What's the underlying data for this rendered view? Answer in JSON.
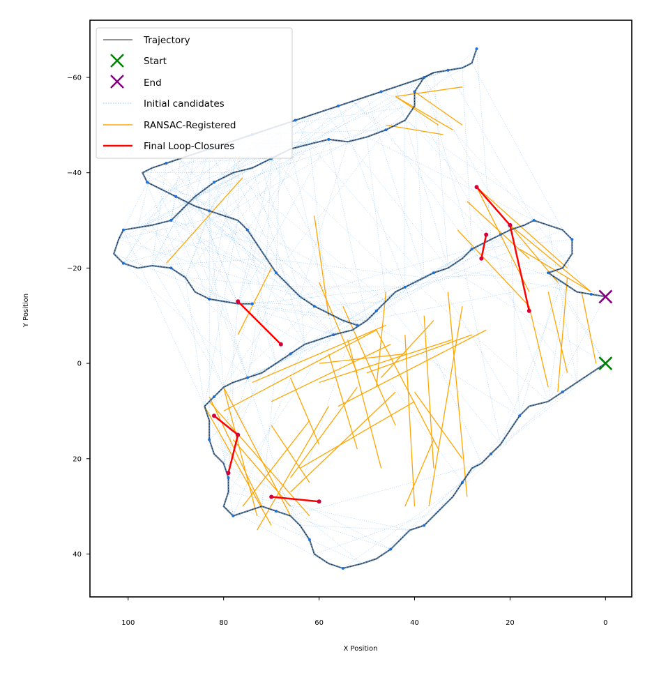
{
  "chart_data": {
    "type": "line",
    "title": "",
    "xlabel": "X Position",
    "ylabel": "Y Position",
    "xlim": [
      108,
      -5.5
    ],
    "ylim": [
      49,
      -72
    ],
    "x_inverted": true,
    "y_inverted": true,
    "x_ticks": [
      100,
      80,
      60,
      40,
      20,
      0
    ],
    "y_ticks": [
      -60,
      -40,
      -20,
      0,
      20,
      40
    ],
    "x_tick_labels": [
      "100",
      "80",
      "60",
      "40",
      "20",
      "0"
    ],
    "y_tick_labels": [
      "−60",
      "−40",
      "−20",
      "0",
      "20",
      "40"
    ],
    "legend": {
      "position": "upper-left",
      "entries": [
        {
          "label": "Trajectory",
          "color": "#555555",
          "style": "thin-line"
        },
        {
          "label": "Start",
          "color": "#008000",
          "style": "x-marker"
        },
        {
          "label": "End",
          "color": "#800080",
          "style": "x-marker"
        },
        {
          "label": "Initial candidates",
          "color": "#5aa9ff",
          "style": "dotted-line"
        },
        {
          "label": "RANSAC-Registered",
          "color": "#ffa500",
          "style": "line"
        },
        {
          "label": "Final Loop-Closures",
          "color": "#ff0000",
          "style": "thick-line"
        }
      ]
    },
    "trajectory": [
      [
        0,
        0
      ],
      [
        3,
        2
      ],
      [
        6,
        4
      ],
      [
        9,
        6
      ],
      [
        12,
        8
      ],
      [
        16,
        9
      ],
      [
        18,
        11
      ],
      [
        20,
        14
      ],
      [
        22,
        17
      ],
      [
        24,
        19
      ],
      [
        26,
        21
      ],
      [
        28,
        22
      ],
      [
        30,
        25
      ],
      [
        32,
        28
      ],
      [
        35,
        31
      ],
      [
        38,
        34
      ],
      [
        41,
        35
      ],
      [
        43,
        37
      ],
      [
        45,
        39
      ],
      [
        48,
        41
      ],
      [
        51,
        42
      ],
      [
        55,
        43
      ],
      [
        58,
        42
      ],
      [
        61,
        40
      ],
      [
        62,
        37
      ],
      [
        64,
        34
      ],
      [
        66,
        32
      ],
      [
        69,
        31
      ],
      [
        72,
        30
      ],
      [
        75,
        31
      ],
      [
        78,
        32
      ],
      [
        80,
        30
      ],
      [
        79,
        27
      ],
      [
        79,
        24
      ],
      [
        80,
        21
      ],
      [
        82,
        19
      ],
      [
        83,
        16
      ],
      [
        83,
        12
      ],
      [
        84,
        9
      ],
      [
        82,
        7
      ],
      [
        80,
        5
      ],
      [
        78,
        4
      ],
      [
        75,
        3
      ],
      [
        72,
        2
      ],
      [
        69,
        0
      ],
      [
        66,
        -2
      ],
      [
        63,
        -4
      ],
      [
        60,
        -5
      ],
      [
        57,
        -6
      ],
      [
        53,
        -7
      ],
      [
        50,
        -9
      ],
      [
        48,
        -11
      ],
      [
        46,
        -13
      ],
      [
        44,
        -15
      ],
      [
        42,
        -16
      ],
      [
        40,
        -17
      ],
      [
        38,
        -18
      ],
      [
        36,
        -19
      ],
      [
        33,
        -20
      ],
      [
        30,
        -22
      ],
      [
        28,
        -24
      ],
      [
        26,
        -25
      ],
      [
        24,
        -26
      ],
      [
        22,
        -27
      ],
      [
        20,
        -28
      ],
      [
        17,
        -29
      ],
      [
        15,
        -30
      ],
      [
        12,
        -29
      ],
      [
        9,
        -28
      ],
      [
        7,
        -26
      ],
      [
        7,
        -23
      ],
      [
        9,
        -20
      ],
      [
        12,
        -19
      ],
      [
        9,
        -17
      ],
      [
        6,
        -15
      ],
      [
        3,
        -14.5
      ],
      [
        0,
        -14
      ]
    ],
    "trajectory_segments": [
      [
        [
          74,
          -12.5
        ],
        [
          77,
          -12.5
        ],
        [
          80,
          -13
        ],
        [
          83,
          -13.5
        ],
        [
          86,
          -15
        ],
        [
          88,
          -18
        ],
        [
          91,
          -20
        ],
        [
          95,
          -20.5
        ],
        [
          98,
          -20
        ],
        [
          101,
          -21
        ],
        [
          103,
          -23
        ],
        [
          102,
          -26
        ],
        [
          101,
          -28
        ],
        [
          98,
          -28.5
        ],
        [
          95,
          -29
        ],
        [
          91,
          -30
        ],
        [
          89,
          -32
        ],
        [
          86,
          -35
        ],
        [
          82,
          -38
        ],
        [
          78,
          -40
        ],
        [
          74,
          -41
        ],
        [
          70,
          -43
        ],
        [
          66,
          -45
        ],
        [
          62,
          -46
        ],
        [
          58,
          -47
        ],
        [
          54,
          -46.5
        ],
        [
          50,
          -47.5
        ],
        [
          46,
          -49
        ],
        [
          42,
          -51
        ],
        [
          40,
          -54
        ],
        [
          40,
          -57
        ],
        [
          38,
          -60
        ],
        [
          36,
          -61
        ],
        [
          33,
          -61.5
        ],
        [
          30,
          -62
        ],
        [
          28,
          -63
        ],
        [
          27,
          -66
        ]
      ],
      [
        [
          52,
          -8
        ],
        [
          55,
          -9
        ],
        [
          58,
          -10.5
        ],
        [
          61,
          -12
        ],
        [
          64,
          -14
        ],
        [
          66,
          -16
        ],
        [
          69,
          -19
        ],
        [
          71,
          -22
        ],
        [
          73,
          -25
        ],
        [
          75,
          -28
        ],
        [
          77,
          -30
        ],
        [
          80,
          -31
        ],
        [
          83,
          -32
        ],
        [
          86,
          -33
        ],
        [
          88,
          -34
        ],
        [
          90,
          -35
        ],
        [
          92,
          -36
        ],
        [
          94,
          -37
        ],
        [
          96,
          -38
        ],
        [
          97,
          -40
        ],
        [
          95,
          -41
        ],
        [
          92,
          -42
        ],
        [
          89,
          -43
        ],
        [
          86,
          -44
        ],
        [
          83,
          -45
        ],
        [
          80,
          -46
        ],
        [
          77,
          -47
        ],
        [
          74,
          -48
        ],
        [
          71,
          -49
        ],
        [
          68,
          -50
        ],
        [
          65,
          -51
        ],
        [
          62,
          -52
        ],
        [
          59,
          -53
        ],
        [
          56,
          -54
        ],
        [
          53,
          -55
        ],
        [
          50,
          -56
        ],
        [
          47,
          -57
        ],
        [
          44,
          -58
        ],
        [
          41,
          -59
        ],
        [
          38,
          -60
        ],
        [
          36,
          -61
        ]
      ]
    ],
    "start": [
      0,
      0
    ],
    "end": [
      0,
      -14
    ],
    "final_loop_closures": [
      [
        [
          77,
          -13
        ],
        [
          68,
          -4
        ]
      ],
      [
        [
          27,
          -37
        ],
        [
          20,
          -29
        ]
      ],
      [
        [
          20,
          -29
        ],
        [
          16,
          -11
        ]
      ],
      [
        [
          25,
          -27
        ],
        [
          26,
          -22
        ]
      ],
      [
        [
          82,
          11
        ],
        [
          77,
          15
        ]
      ],
      [
        [
          77,
          15
        ],
        [
          79,
          23
        ]
      ],
      [
        [
          70,
          28
        ],
        [
          60,
          29
        ]
      ]
    ],
    "ransac_registered": [
      [
        [
          92,
          -21
        ],
        [
          76,
          -39
        ]
      ],
      [
        [
          44,
          -56
        ],
        [
          30,
          -58
        ]
      ],
      [
        [
          44,
          -56
        ],
        [
          35,
          -50
        ]
      ],
      [
        [
          44,
          -56
        ],
        [
          32,
          -49
        ]
      ],
      [
        [
          46,
          -50
        ],
        [
          34,
          -48
        ]
      ],
      [
        [
          40,
          -57
        ],
        [
          30,
          -50
        ]
      ],
      [
        [
          27,
          -37
        ],
        [
          16,
          -15
        ]
      ],
      [
        [
          27,
          -37
        ],
        [
          8,
          -20
        ]
      ],
      [
        [
          20,
          -29
        ],
        [
          3,
          -15
        ]
      ],
      [
        [
          20,
          -29
        ],
        [
          10,
          -17
        ]
      ],
      [
        [
          18,
          -24
        ],
        [
          3,
          -15
        ]
      ],
      [
        [
          29,
          -34
        ],
        [
          16,
          -22
        ]
      ],
      [
        [
          31,
          -28
        ],
        [
          16,
          -12
        ]
      ],
      [
        [
          61,
          -31
        ],
        [
          58,
          -10
        ]
      ],
      [
        [
          70,
          -20
        ],
        [
          77,
          -6
        ]
      ],
      [
        [
          46,
          -8
        ],
        [
          74,
          4
        ]
      ],
      [
        [
          48,
          -7
        ],
        [
          80,
          10
        ]
      ],
      [
        [
          45,
          -4
        ],
        [
          70,
          8
        ]
      ],
      [
        [
          42,
          -2
        ],
        [
          60,
          0
        ]
      ],
      [
        [
          36,
          -9
        ],
        [
          47,
          3
        ]
      ],
      [
        [
          25,
          -7
        ],
        [
          56,
          9
        ]
      ],
      [
        [
          28,
          -6
        ],
        [
          50,
          2
        ]
      ],
      [
        [
          32,
          -5
        ],
        [
          60,
          4
        ]
      ],
      [
        [
          44,
          6
        ],
        [
          66,
          27
        ]
      ],
      [
        [
          40,
          8
        ],
        [
          64,
          22
        ]
      ],
      [
        [
          52,
          5
        ],
        [
          66,
          24
        ]
      ],
      [
        [
          58,
          9
        ],
        [
          73,
          35
        ]
      ],
      [
        [
          62,
          12
        ],
        [
          76,
          30
        ]
      ],
      [
        [
          80,
          5
        ],
        [
          66,
          32
        ]
      ],
      [
        [
          83,
          7
        ],
        [
          72,
          30
        ]
      ],
      [
        [
          83,
          8
        ],
        [
          62,
          32
        ]
      ],
      [
        [
          80,
          5
        ],
        [
          73,
          32
        ]
      ],
      [
        [
          66,
          3
        ],
        [
          60,
          17
        ]
      ],
      [
        [
          58,
          -2
        ],
        [
          52,
          18
        ]
      ],
      [
        [
          54,
          -5
        ],
        [
          47,
          22
        ]
      ],
      [
        [
          48,
          -7
        ],
        [
          35,
          18
        ]
      ],
      [
        [
          42,
          -6
        ],
        [
          40,
          30
        ]
      ],
      [
        [
          38,
          -10
        ],
        [
          36,
          22
        ]
      ],
      [
        [
          33,
          -15
        ],
        [
          29,
          28
        ]
      ],
      [
        [
          30,
          -12
        ],
        [
          37,
          30
        ]
      ],
      [
        [
          16,
          -12
        ],
        [
          12,
          5
        ]
      ],
      [
        [
          12,
          -15
        ],
        [
          8,
          2
        ]
      ],
      [
        [
          8,
          -18
        ],
        [
          10,
          6
        ]
      ],
      [
        [
          5,
          -15
        ],
        [
          2,
          0
        ]
      ],
      [
        [
          70,
          13
        ],
        [
          62,
          25
        ]
      ],
      [
        [
          78,
          16
        ],
        [
          66,
          30
        ]
      ],
      [
        [
          84,
          9
        ],
        [
          70,
          34
        ]
      ],
      [
        [
          60,
          -17
        ],
        [
          52,
          2
        ]
      ],
      [
        [
          55,
          -12
        ],
        [
          44,
          13
        ]
      ],
      [
        [
          46,
          -15
        ],
        [
          48,
          5
        ]
      ],
      [
        [
          36,
          16
        ],
        [
          42,
          30
        ]
      ],
      [
        [
          40,
          6
        ],
        [
          30,
          20
        ]
      ]
    ],
    "initial_candidates_note": "dense field of thin dotted blue lines between trajectory poses"
  }
}
